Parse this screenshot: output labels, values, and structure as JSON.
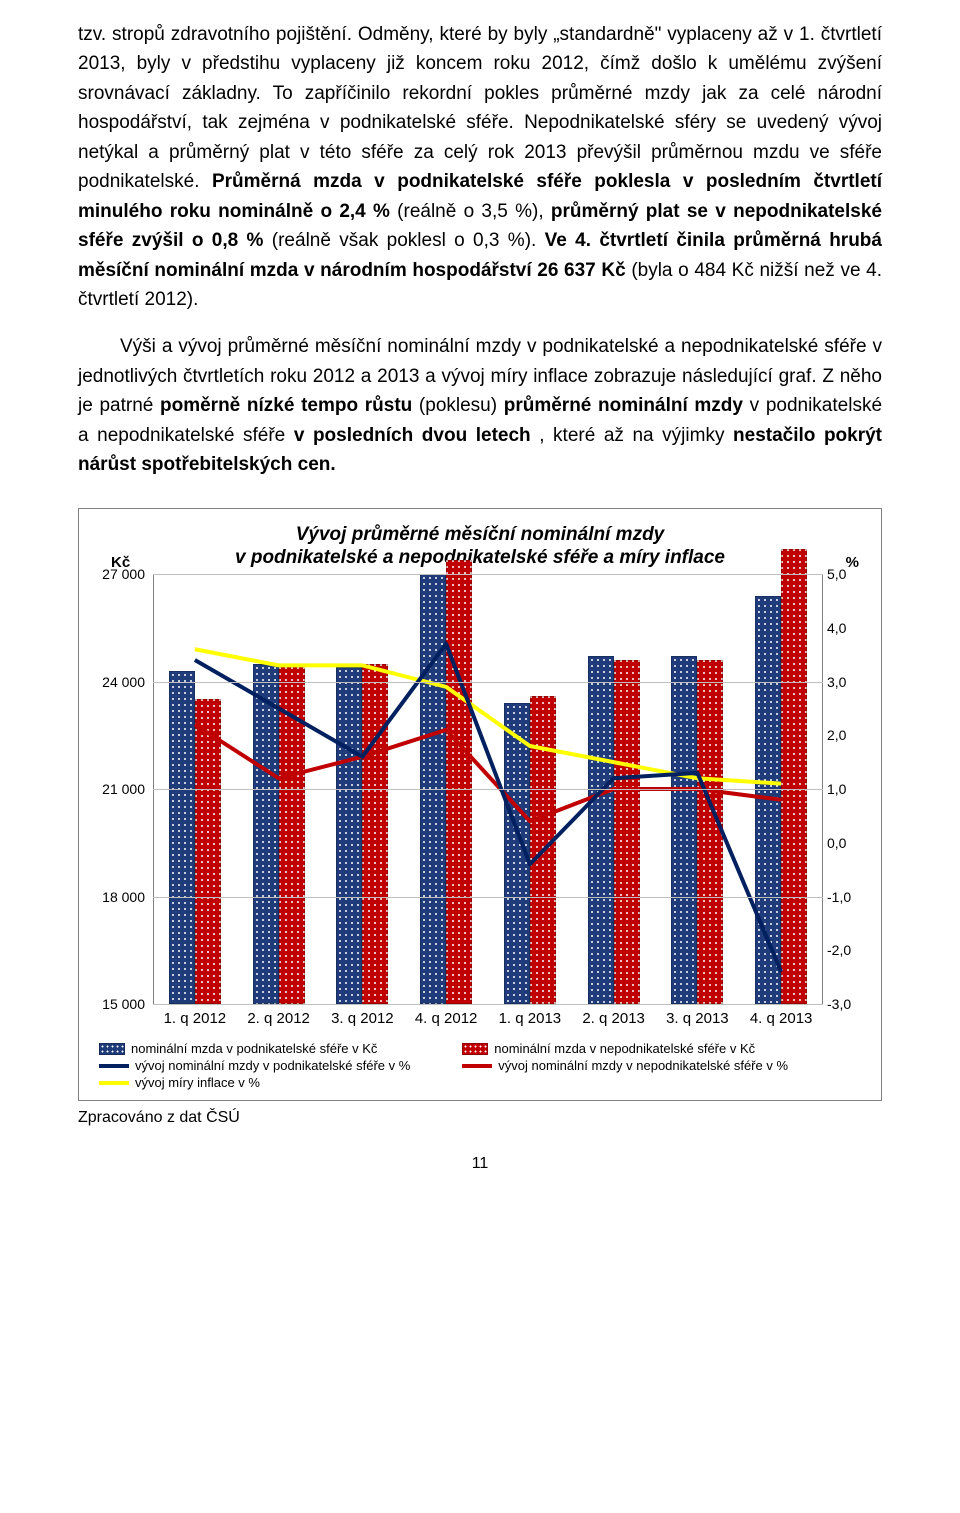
{
  "paragraphs": {
    "p1_pre": "tzv. stropů zdravotního pojištění. Odměny, které by byly „standardně\" vyplaceny až v 1. čtvrtletí 2013, byly v předstihu vyplaceny již koncem roku 2012, čímž došlo k umělému zvýšení srovnávací základny. To zapříčinilo rekordní pokles průměrné mzdy jak za celé národní hospodářství, tak zejména v podnikatelské sféře. Nepodnikatelské sféry se uvedený vývoj netýkal a průměrný plat v této sféře za celý rok 2013 převýšil průměrnou mzdu ve sféře podnikatelské. ",
    "p1_b1": "Průměrná mzda v podnikatelské sféře poklesla v posledním čtvrtletí minulého roku nominálně o 2,4 % ",
    "p1_mid1": "(reálně o 3,5 %), ",
    "p1_b2": "průměrný plat se v nepodnikatelské sféře zvýšil o 0,8 % ",
    "p1_mid2": "(reálně však poklesl o 0,3 %). ",
    "p1_b3": "Ve 4. čtvrtletí činila průměrná hrubá měsíční nominální mzda v národním hospodářství 26 637 Kč ",
    "p1_end": "(byla o 484 Kč nižší než ve 4. čtvrtletí 2012).",
    "p2_pre": "Výši a vývoj průměrné měsíční nominální mzdy v podnikatelské a nepodnikatelské sféře v jednotlivých čtvrtletích roku 2012 a 2013 a vývoj míry inflace zobrazuje následující graf. Z něho je patrné ",
    "p2_b1": "poměrně nízké tempo růstu ",
    "p2_mid1": "(poklesu) ",
    "p2_b2": "průměrné nominální mzdy ",
    "p2_mid2": "v podnikatelské a nepodnikatelské sféře ",
    "p2_b3": "v posledních dvou letech",
    "p2_mid3": ", které až na výjimky ",
    "p2_b4": "nestačilo pokrýt nárůst spotřebitelských cen."
  },
  "chart": {
    "title_l1": "Vývoj průměrné měsíční nominální mzdy",
    "title_l2": "v podnikatelské a nepodnikatelské sféře a míry inflace",
    "y_left_label": "Kč",
    "y_right_label": "%",
    "y_left": {
      "min": 15000,
      "max": 27000,
      "ticks": [
        27000,
        24000,
        21000,
        18000,
        15000
      ],
      "tick_labels": [
        "27 000",
        "24 000",
        "21 000",
        "18 000",
        "15 000"
      ]
    },
    "y_right": {
      "min": -3.0,
      "max": 5.0,
      "ticks": [
        5.0,
        4.0,
        3.0,
        2.0,
        1.0,
        0.0,
        -1.0,
        -2.0,
        -3.0
      ],
      "tick_labels": [
        "5,0",
        "4,0",
        "3,0",
        "2,0",
        "1,0",
        "0,0",
        "-1,0",
        "-2,0",
        "-3,0"
      ]
    },
    "categories": [
      "1. q 2012",
      "2. q 2012",
      "3. q 2012",
      "4. q 2012",
      "1. q 2013",
      "2. q 2013",
      "3. q 2013",
      "4. q 2013"
    ],
    "bar1_values": [
      24300,
      24500,
      24400,
      27000,
      23400,
      24700,
      24700,
      26400
    ],
    "bar2_values": [
      23500,
      24400,
      24500,
      27400,
      23600,
      24600,
      24600,
      27700
    ],
    "line1_values": [
      3.4,
      2.5,
      1.6,
      3.7,
      -0.4,
      1.2,
      1.3,
      -2.4
    ],
    "line2_values": [
      2.2,
      1.2,
      1.6,
      2.1,
      0.4,
      1.0,
      1.0,
      0.8
    ],
    "line3_values": [
      3.6,
      3.3,
      3.3,
      2.9,
      1.8,
      1.5,
      1.2,
      1.1
    ],
    "colors": {
      "bar1": "#1f3b7a",
      "bar2": "#c00000",
      "line1": "#002060",
      "line2": "#c00000",
      "line3": "#ffff00",
      "grid": "#bfbfbf",
      "axis": "#808080",
      "line_stroke_width": 4
    },
    "legend": {
      "l1": "nominální mzda v podnikatelské sféře v Kč",
      "l2": "nominální mzda v nepodnikatelské sféře v Kč",
      "l3": "vývoj nominální mzdy v podnikatelské sféře v %",
      "l4": "vývoj nominální mzdy v nepodnikatelské sféře v %",
      "l5": "vývoj míry inflace v %"
    }
  },
  "source_note": "Zpracováno z dat ČSÚ",
  "page_number": "11"
}
